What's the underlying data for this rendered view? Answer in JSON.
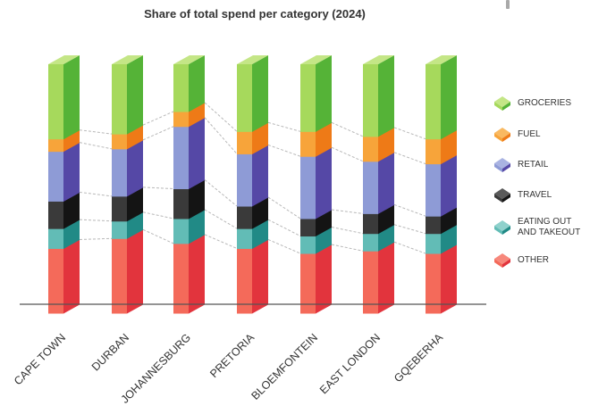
{
  "chart_data": {
    "type": "bar",
    "stacked": true,
    "title": "Share of total spend per category (2024)",
    "categories": [
      "CAPE TOWN",
      "DURBAN",
      "JOHANNESBURG",
      "PRETORIA",
      "BLOEMFONTEIN",
      "EAST LONDON",
      "GQEBERHA"
    ],
    "series": [
      {
        "name": "OTHER",
        "values": [
          26,
          30,
          28,
          26,
          24,
          25,
          24
        ]
      },
      {
        "name": "EATING OUT AND TAKEOUT",
        "values": [
          8,
          7,
          10,
          8,
          7,
          7,
          8
        ]
      },
      {
        "name": "TRAVEL",
        "values": [
          11,
          10,
          12,
          9,
          7,
          8,
          7
        ]
      },
      {
        "name": "RETAIL",
        "values": [
          20,
          19,
          25,
          21,
          25,
          21,
          21
        ]
      },
      {
        "name": "FUEL",
        "values": [
          5,
          6,
          6,
          9,
          10,
          10,
          10
        ]
      },
      {
        "name": "GROCERIES",
        "values": [
          30,
          28,
          19,
          27,
          27,
          29,
          30
        ]
      }
    ],
    "ylim": [
      0,
      100
    ],
    "legend_position": "right",
    "grid": false,
    "legend": [
      {
        "name": "GROCERIES",
        "color": "#7dc33b",
        "lines": [
          "GROCERIES"
        ]
      },
      {
        "name": "FUEL",
        "color": "#f39020",
        "lines": [
          "FUEL"
        ]
      },
      {
        "name": "RETAIL",
        "color": "#7473c5",
        "lines": [
          "RETAIL"
        ]
      },
      {
        "name": "TRAVEL",
        "color": "#2b2b2b",
        "lines": [
          "TRAVEL"
        ]
      },
      {
        "name": "EATING OUT AND TAKEOUT",
        "color": "#3aa6a1",
        "lines": [
          "EATING OUT",
          "AND TAKEOUT"
        ]
      },
      {
        "name": "OTHER",
        "color": "#ee3f44",
        "lines": [
          "OTHER"
        ]
      }
    ],
    "colors": {
      "OTHER": {
        "front": "#f46a5a",
        "side": "#e2343d",
        "top": "#f7887c"
      },
      "EATING OUT AND TAKEOUT": {
        "front": "#62bcb6",
        "side": "#218a86",
        "top": "#8fd1cc"
      },
      "TRAVEL": {
        "front": "#3a3a3a",
        "side": "#141414",
        "top": "#5a5a5a"
      },
      "RETAIL": {
        "front": "#8e9bd6",
        "side": "#5548a6",
        "top": "#a9b3e2"
      },
      "FUEL": {
        "front": "#f7a43a",
        "side": "#ee7a17",
        "top": "#f9b961"
      },
      "GROCERIES": {
        "front": "#a6d95c",
        "side": "#55b337",
        "top": "#c4e686"
      }
    }
  }
}
